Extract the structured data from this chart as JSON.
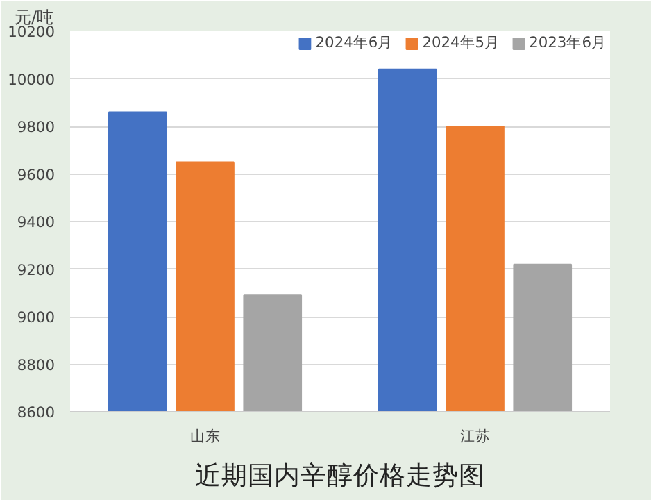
{
  "chart_data": {
    "type": "bar",
    "ylabel": "元/吨",
    "categories": [
      "山东",
      "江苏"
    ],
    "series": [
      {
        "name": "2024年6月",
        "color": "#4472c4",
        "values": [
          9860,
          10040
        ]
      },
      {
        "name": "2024年5月",
        "color": "#ed7d31",
        "values": [
          9650,
          9800
        ]
      },
      {
        "name": "2023年6月",
        "color": "#a5a5a5",
        "values": [
          9090,
          9220
        ]
      }
    ],
    "ylim": [
      8600,
      10200
    ],
    "yticks": [
      8600,
      8800,
      9000,
      9200,
      9400,
      9600,
      9800,
      10000,
      10200
    ],
    "grid": "y",
    "legend": "top right",
    "annotations": [
      "近期国内辛醇价格走势图"
    ]
  }
}
